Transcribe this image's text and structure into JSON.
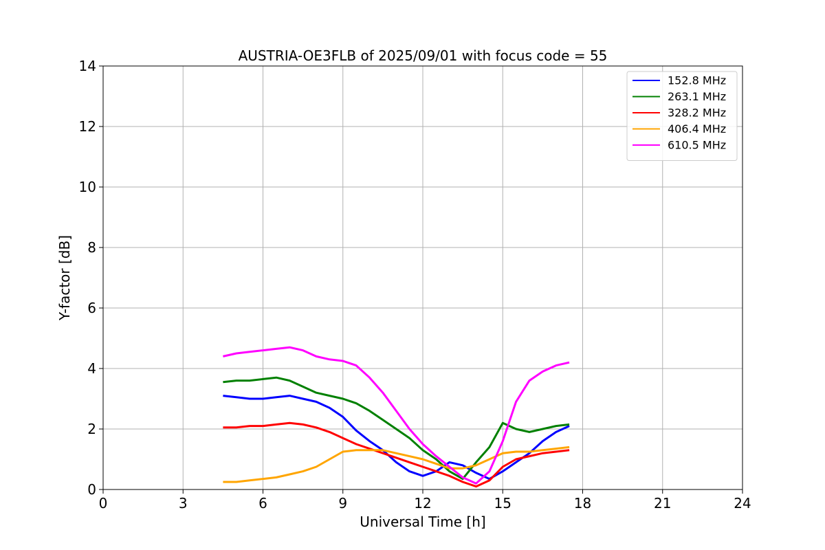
{
  "chart_data": {
    "type": "line",
    "title": "AUSTRIA-OE3FLB of 2025/09/01 with focus code = 55",
    "xlabel": "Universal Time [h]",
    "ylabel": "Y-factor [dB]",
    "xlim": [
      0,
      24
    ],
    "ylim": [
      0,
      14
    ],
    "xticks": [
      "0",
      "3",
      "6",
      "9",
      "12",
      "15",
      "18",
      "21",
      "24"
    ],
    "yticks": [
      "0",
      "2",
      "4",
      "6",
      "8",
      "10",
      "12",
      "14"
    ],
    "grid": true,
    "legend_position": "top-right",
    "series": [
      {
        "name": "152.8 MHz",
        "color": "#0000ff",
        "x": [
          4.5,
          5.0,
          5.5,
          6.0,
          6.5,
          7.0,
          7.5,
          8.0,
          8.5,
          9.0,
          9.5,
          10.0,
          10.5,
          11.0,
          11.5,
          12.0,
          12.5,
          13.0,
          13.5,
          14.0,
          14.5,
          15.0,
          15.5,
          16.0,
          16.5,
          17.0,
          17.5
        ],
        "y": [
          3.1,
          3.05,
          3.0,
          3.0,
          3.05,
          3.1,
          3.0,
          2.9,
          2.7,
          2.4,
          1.95,
          1.6,
          1.3,
          0.9,
          0.6,
          0.45,
          0.6,
          0.9,
          0.8,
          0.55,
          0.35,
          0.6,
          0.9,
          1.2,
          1.6,
          1.9,
          2.1
        ]
      },
      {
        "name": "263.1 MHz",
        "color": "#008000",
        "x": [
          4.5,
          5.0,
          5.5,
          6.0,
          6.5,
          7.0,
          7.5,
          8.0,
          8.5,
          9.0,
          9.5,
          10.0,
          10.5,
          11.0,
          11.5,
          12.0,
          12.5,
          13.0,
          13.5,
          14.0,
          14.5,
          15.0,
          15.5,
          16.0,
          16.5,
          17.0,
          17.5
        ],
        "y": [
          3.55,
          3.6,
          3.6,
          3.65,
          3.7,
          3.6,
          3.4,
          3.2,
          3.1,
          3.0,
          2.85,
          2.6,
          2.3,
          2.0,
          1.7,
          1.3,
          1.0,
          0.6,
          0.35,
          0.9,
          1.4,
          2.2,
          2.0,
          1.9,
          2.0,
          2.1,
          2.15
        ]
      },
      {
        "name": "328.2 MHz",
        "color": "#ff0000",
        "x": [
          4.5,
          5.0,
          5.5,
          6.0,
          6.5,
          7.0,
          7.5,
          8.0,
          8.5,
          9.0,
          9.5,
          10.0,
          10.5,
          11.0,
          11.5,
          12.0,
          12.5,
          13.0,
          13.5,
          14.0,
          14.5,
          15.0,
          15.5,
          16.0,
          16.5,
          17.0,
          17.5
        ],
        "y": [
          2.05,
          2.05,
          2.1,
          2.1,
          2.15,
          2.2,
          2.15,
          2.05,
          1.9,
          1.7,
          1.5,
          1.35,
          1.2,
          1.05,
          0.9,
          0.75,
          0.6,
          0.45,
          0.25,
          0.1,
          0.3,
          0.75,
          1.0,
          1.1,
          1.2,
          1.25,
          1.3
        ]
      },
      {
        "name": "406.4 MHz",
        "color": "#ffa500",
        "x": [
          4.5,
          5.0,
          5.5,
          6.0,
          6.5,
          7.0,
          7.5,
          8.0,
          8.5,
          9.0,
          9.5,
          10.0,
          10.5,
          11.0,
          11.5,
          12.0,
          12.5,
          13.0,
          13.5,
          14.0,
          14.5,
          15.0,
          15.5,
          16.0,
          16.5,
          17.0,
          17.5
        ],
        "y": [
          0.25,
          0.25,
          0.3,
          0.35,
          0.4,
          0.5,
          0.6,
          0.75,
          1.0,
          1.25,
          1.3,
          1.3,
          1.3,
          1.2,
          1.1,
          1.0,
          0.85,
          0.7,
          0.7,
          0.8,
          1.0,
          1.2,
          1.25,
          1.25,
          1.3,
          1.35,
          1.4
        ]
      },
      {
        "name": "610.5 MHz",
        "color": "#ff00ff",
        "x": [
          4.5,
          5.0,
          5.5,
          6.0,
          6.5,
          7.0,
          7.5,
          8.0,
          8.5,
          9.0,
          9.5,
          10.0,
          10.5,
          11.0,
          11.5,
          12.0,
          12.5,
          13.0,
          13.5,
          14.0,
          14.5,
          15.0,
          15.5,
          16.0,
          16.5,
          17.0,
          17.5
        ],
        "y": [
          4.4,
          4.5,
          4.55,
          4.6,
          4.65,
          4.7,
          4.6,
          4.4,
          4.3,
          4.25,
          4.1,
          3.7,
          3.2,
          2.6,
          2.0,
          1.5,
          1.1,
          0.75,
          0.4,
          0.2,
          0.6,
          1.6,
          2.9,
          3.6,
          3.9,
          4.1,
          4.2
        ]
      }
    ]
  }
}
